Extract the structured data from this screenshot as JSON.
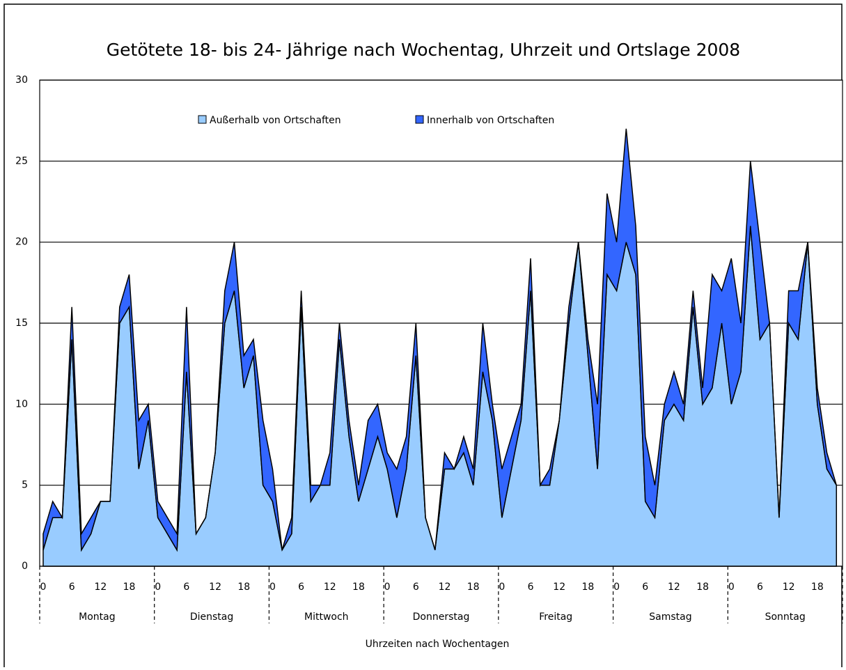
{
  "chart_data": {
    "type": "stacked-area",
    "title": "Getötete 18- bis 24- Jährige nach Wochentag, Uhrzeit und Ortslage 2008",
    "x_label": "Uhrzeiten nach Wochentagen",
    "groups": [
      "Montag",
      "Dienstag",
      "Mittwoch",
      "Donnerstag",
      "Freitag",
      "Samstag",
      "Sonntag"
    ],
    "categories": [
      "0",
      null,
      null,
      "6",
      null,
      null,
      "12",
      null,
      null,
      "18",
      null,
      null,
      "0",
      null,
      null,
      "6",
      null,
      null,
      "12",
      null,
      null,
      "18",
      null,
      null,
      "0",
      null,
      null,
      "6",
      null,
      null,
      "12",
      null,
      null,
      "18",
      null,
      null,
      "0",
      null,
      null,
      "6",
      null,
      null,
      "12",
      null,
      null,
      "18",
      null,
      null,
      "0",
      null,
      null,
      "6",
      null,
      null,
      "12",
      null,
      null,
      "18",
      null,
      null,
      "0",
      null,
      null,
      "6",
      null,
      null,
      "12",
      null,
      null,
      "18",
      null,
      null,
      "0",
      null,
      null,
      "6",
      null,
      null,
      "12",
      null,
      null,
      "18",
      null,
      null
    ],
    "series": [
      {
        "name": "Außerhalb von Ortschaften",
        "color": "#99ccff",
        "values": [
          1,
          3,
          3,
          14,
          1,
          2,
          4,
          4,
          15,
          16,
          6,
          9,
          3,
          2,
          1,
          12,
          2,
          3,
          7,
          15,
          17,
          11,
          13,
          5,
          4,
          1,
          2,
          16,
          4,
          5,
          5,
          14,
          8,
          4,
          6,
          8,
          6,
          3,
          6,
          13,
          3,
          1,
          6,
          6,
          7,
          5,
          12,
          9,
          3,
          6,
          9,
          17,
          5,
          5,
          9,
          15,
          20,
          13,
          6,
          18,
          17,
          20,
          18,
          4,
          3,
          9,
          10,
          9,
          16,
          10,
          11,
          15,
          10,
          12,
          21,
          14,
          15,
          3,
          15,
          14,
          20,
          10,
          6,
          5
        ]
      },
      {
        "name": "Innerhalb von Ortschaften",
        "color": "#3366ff",
        "values": [
          1,
          1,
          0,
          2,
          1,
          1,
          0,
          0,
          1,
          2,
          3,
          1,
          1,
          1,
          1,
          4,
          0,
          0,
          0,
          2,
          3,
          2,
          1,
          4,
          2,
          0,
          1,
          1,
          1,
          0,
          2,
          1,
          1,
          1,
          3,
          2,
          1,
          3,
          2,
          2,
          0,
          0,
          1,
          0,
          1,
          1,
          3,
          1,
          3,
          2,
          1,
          2,
          0,
          1,
          0,
          1,
          0,
          1,
          4,
          5,
          3,
          7,
          3,
          4,
          2,
          1,
          2,
          1,
          1,
          1,
          7,
          2,
          9,
          3,
          4,
          6,
          0,
          0,
          2,
          3,
          0,
          1,
          1,
          0
        ]
      }
    ],
    "ylim": [
      0,
      30
    ],
    "yticks": [
      0,
      5,
      10,
      15,
      20,
      25,
      30
    ],
    "grid": true
  }
}
